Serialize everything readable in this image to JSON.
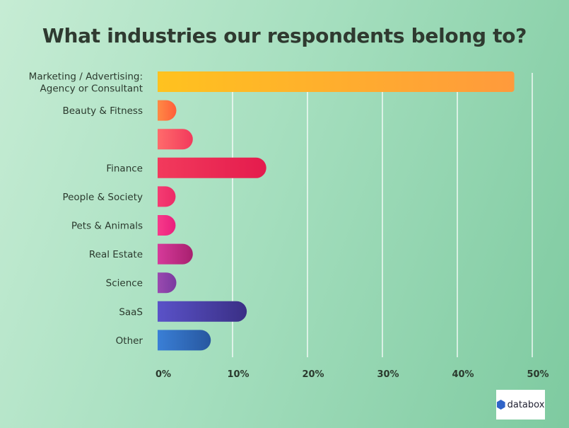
{
  "chart_data": {
    "type": "bar",
    "orientation": "horizontal",
    "title": "What industries our respondents belong to?",
    "categories": [
      "Marketing / Advertising: Agency or Consultant",
      "Beauty & Fitness",
      "",
      "Finance",
      "People & Society",
      "Pets & Animals",
      "Real Estate",
      "Science",
      "SaaS",
      "Other"
    ],
    "values": [
      47.6,
      2.5,
      4.7,
      14.5,
      2.4,
      2.4,
      4.7,
      2.5,
      11.9,
      7.1
    ],
    "unit": "%",
    "xlim": [
      0,
      50
    ],
    "ticks": [
      "0%",
      "10%",
      "20%",
      "30%",
      "40%",
      "50%"
    ],
    "grid": true,
    "colors": [
      [
        "#ffc21f",
        "#ff9a3c"
      ],
      [
        "#ff8a45",
        "#ff5e3a"
      ],
      [
        "#ff6b6b",
        "#f23a5c"
      ],
      [
        "#f23a5c",
        "#e41b4d"
      ],
      [
        "#f53c72",
        "#ec2a66"
      ],
      [
        "#f73b8a",
        "#ea1f7d"
      ],
      [
        "#d63a9a",
        "#a8206f"
      ],
      [
        "#9a4ab0",
        "#7a3a9f"
      ],
      [
        "#5a52c8",
        "#3a2f85"
      ],
      [
        "#3a7fd6",
        "#27579f"
      ]
    ]
  },
  "logo": {
    "text": "databox"
  }
}
